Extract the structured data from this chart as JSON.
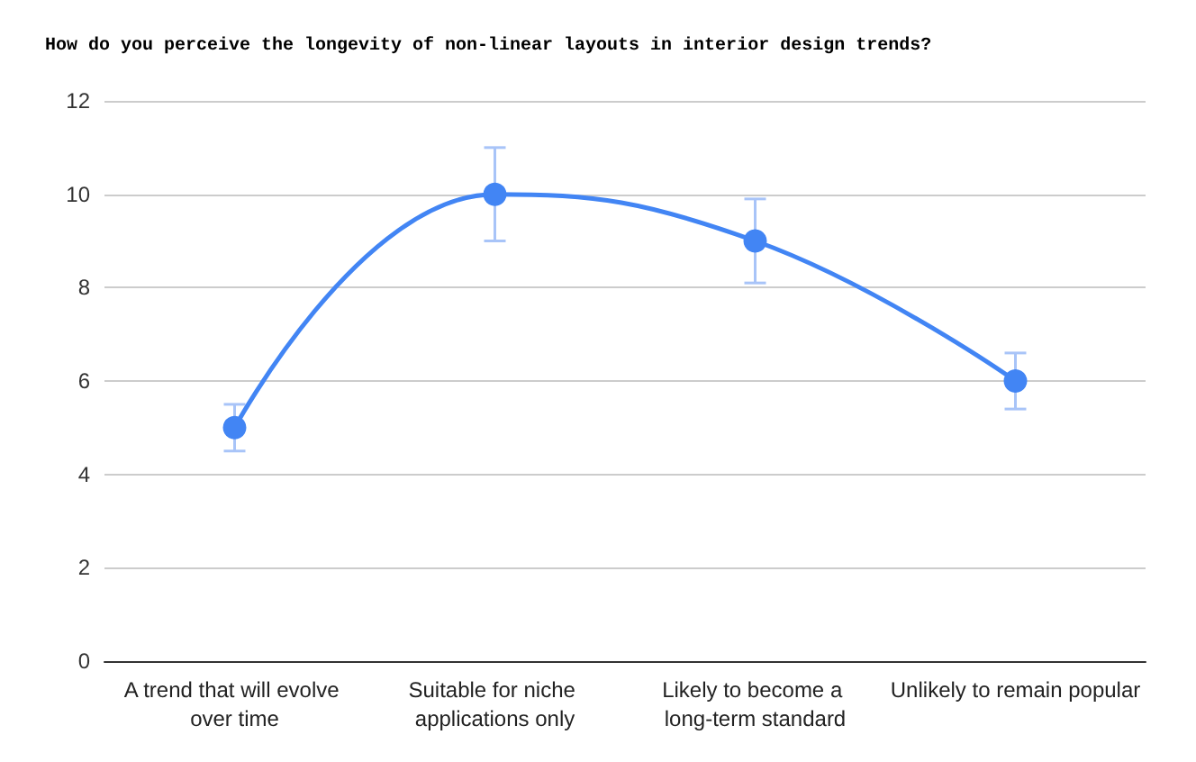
{
  "chart_data": {
    "type": "line",
    "title": "How do you perceive the longevity of non-linear layouts in interior design trends?",
    "categories": [
      "A trend that will evolve over time",
      "Suitable for niche applications only",
      "Likely to become a long-term standard",
      "Unlikely to remain popular"
    ],
    "values": [
      5,
      10,
      9,
      6
    ],
    "errors": [
      0.5,
      1,
      0.9,
      0.6
    ],
    "color": "#4285f4",
    "ylim": [
      0,
      12
    ],
    "yticks": [
      0,
      2,
      4,
      6,
      8,
      10,
      12
    ],
    "grid": "y",
    "marker": "circle",
    "line_style": "solid"
  }
}
